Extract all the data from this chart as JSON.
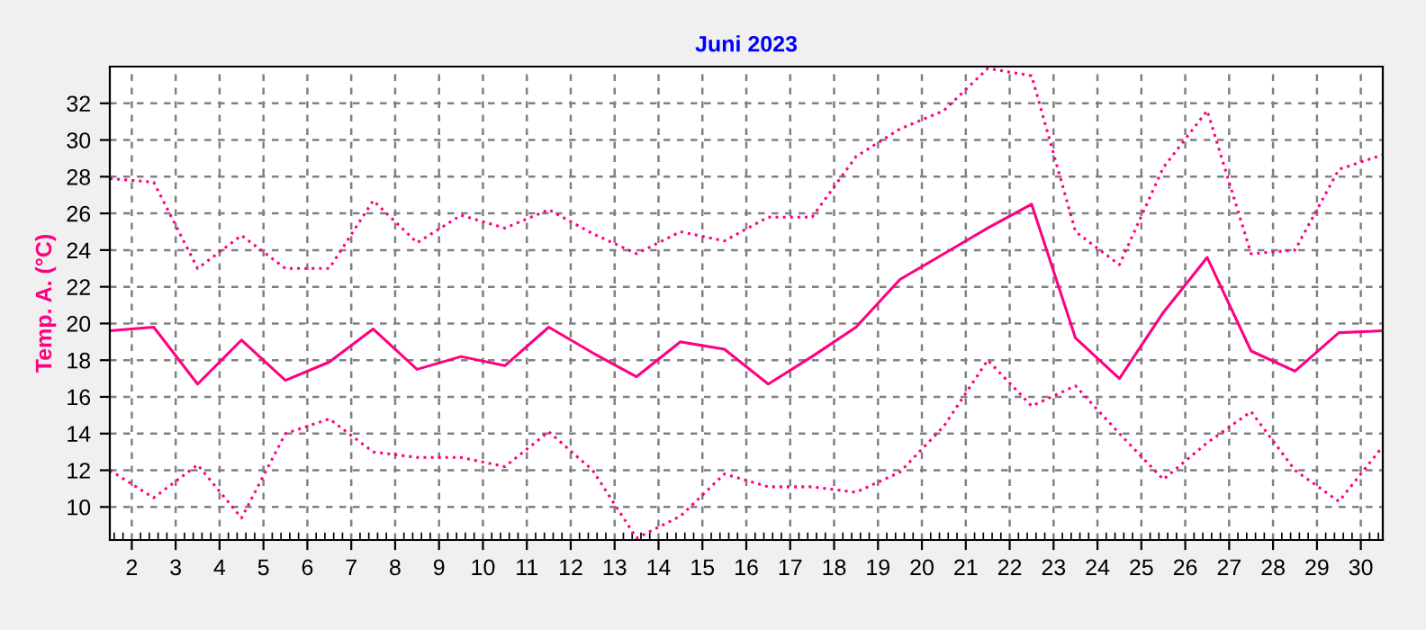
{
  "chart_data": {
    "type": "line",
    "title": "Juni 2023",
    "ylabel": "Temp. A. (°C)",
    "x": [
      1.5,
      2.5,
      3.5,
      4.5,
      5.5,
      6.5,
      7.5,
      8.5,
      9.5,
      10.5,
      11.5,
      12.5,
      13.5,
      14.5,
      15.5,
      16.5,
      17.5,
      18.5,
      19.5,
      20.5,
      21.5,
      22.5,
      23.5,
      24.5,
      25.5,
      26.5,
      27.5,
      28.5,
      29.5,
      30.5
    ],
    "series": [
      {
        "color": "#ff0080",
        "line_style": "dotted",
        "values": [
          27.9,
          27.7,
          23.0,
          24.8,
          23.0,
          23.0,
          26.7,
          24.4,
          25.9,
          25.2,
          26.2,
          24.9,
          23.8,
          25.0,
          24.5,
          25.8,
          25.8,
          29.1,
          30.6,
          31.6,
          33.9,
          33.5,
          25.0,
          23.2,
          28.5,
          31.6,
          23.8,
          24.0,
          28.4,
          29.2
        ]
      },
      {
        "color": "#ff0080",
        "line_style": "solid",
        "values": [
          19.6,
          19.8,
          16.7,
          19.1,
          16.9,
          17.9,
          19.7,
          17.5,
          18.2,
          17.7,
          19.8,
          18.4,
          17.1,
          19.0,
          18.6,
          16.7,
          18.2,
          19.8,
          22.4,
          23.8,
          25.2,
          26.5,
          19.2,
          17.0,
          20.6,
          23.6,
          18.5,
          17.4,
          19.5,
          19.6
        ]
      },
      {
        "color": "#ff0080",
        "line_style": "dotted",
        "values": [
          12.0,
          10.5,
          12.3,
          9.4,
          14.0,
          14.8,
          13.0,
          12.7,
          12.7,
          12.2,
          14.1,
          12.0,
          8.3,
          9.5,
          11.8,
          11.1,
          11.1,
          10.8,
          11.9,
          14.4,
          18.0,
          15.5,
          16.6,
          14.0,
          11.5,
          13.5,
          15.2,
          12.0,
          10.3,
          13.3
        ]
      }
    ],
    "xlim": [
      1.5,
      30.5
    ],
    "xticks": [
      2,
      3,
      4,
      5,
      6,
      7,
      8,
      9,
      10,
      11,
      12,
      13,
      14,
      15,
      16,
      17,
      18,
      19,
      20,
      21,
      22,
      23,
      24,
      25,
      26,
      27,
      28,
      29,
      30
    ],
    "ylim": [
      8.2,
      34
    ],
    "yticks": [
      10,
      12,
      14,
      16,
      18,
      20,
      22,
      24,
      26,
      28,
      30,
      32
    ],
    "grid": true,
    "legend": false
  }
}
